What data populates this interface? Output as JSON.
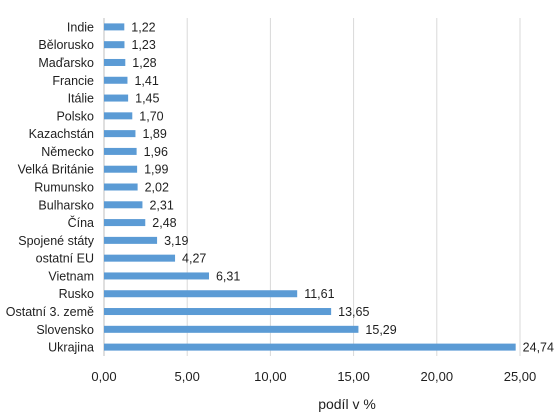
{
  "chart_data": {
    "type": "bar",
    "orientation": "horizontal",
    "categories": [
      "Indie",
      "Bělorusko",
      "Maďarsko",
      "Francie",
      "Itálie",
      "Polsko",
      "Kazachstán",
      "Německo",
      "Velká Británie",
      "Rumunsko",
      "Bulharsko",
      "Čína",
      "Spojené státy",
      "ostatní EU",
      "Vietnam",
      "Rusko",
      "Ostatní 3. země",
      "Slovensko",
      "Ukrajina"
    ],
    "values": [
      1.22,
      1.23,
      1.28,
      1.41,
      1.45,
      1.7,
      1.89,
      1.96,
      1.99,
      2.02,
      2.31,
      2.48,
      3.19,
      4.27,
      6.31,
      11.61,
      13.65,
      15.29,
      24.74
    ],
    "value_labels": [
      "1,22",
      "1,23",
      "1,28",
      "1,41",
      "1,45",
      "1,70",
      "1,89",
      "1,96",
      "1,99",
      "2,02",
      "2,31",
      "2,48",
      "3,19",
      "4,27",
      "6,31",
      "11,61",
      "13,65",
      "15,29",
      "24,74"
    ],
    "xlabel": "podíl v %",
    "xlim": [
      0,
      25
    ],
    "x_ticks": [
      "0,00",
      "5,00",
      "10,00",
      "15,00",
      "20,00",
      "25,00"
    ],
    "x_tick_values": [
      0,
      5,
      10,
      15,
      20,
      25
    ],
    "grid": "vertical",
    "legend": "none",
    "bar_color": "#5b9bd5"
  }
}
